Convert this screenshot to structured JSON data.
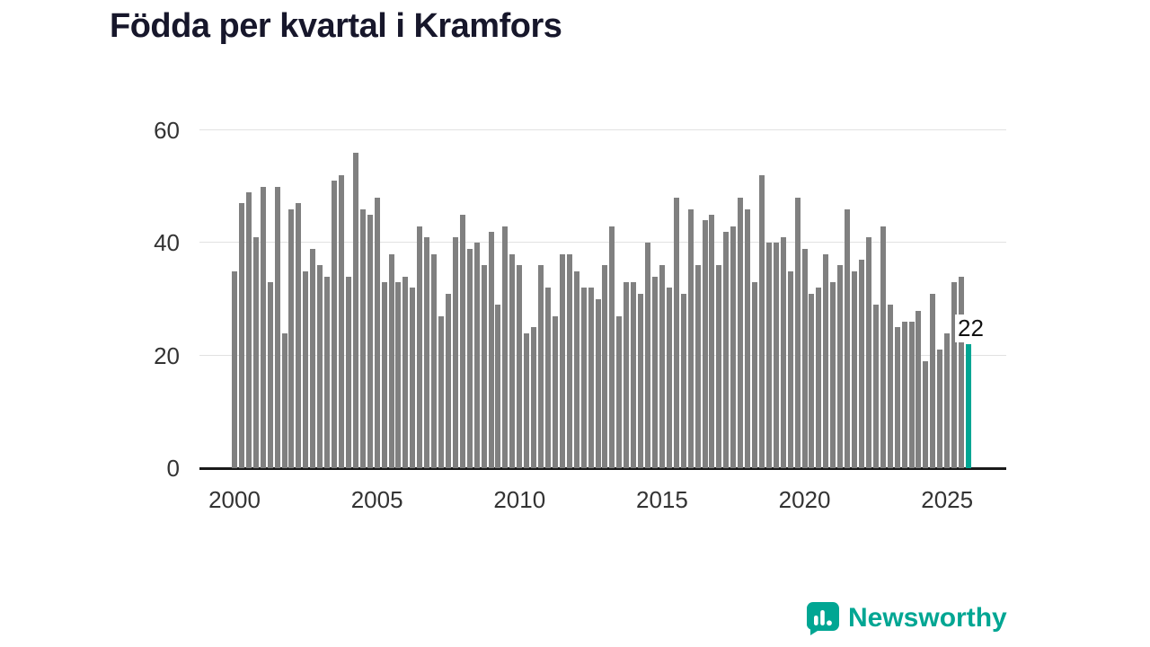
{
  "title": "Födda per kvartal i Kramfors",
  "branding": {
    "logo_text": "Newsworthy"
  },
  "colors": {
    "bar": "#808080",
    "highlight": "#00A693",
    "grid": "#e2e2e2",
    "axis": "#1a1a1a",
    "title": "#17172b",
    "tick": "#333333",
    "brand": "#00A693"
  },
  "chart_data": {
    "type": "bar",
    "title": "Födda per kvartal i Kramfors",
    "x_tick_labels": [
      "2000",
      "2005",
      "2010",
      "2015",
      "2020",
      "2025"
    ],
    "x_tick_indices": [
      0,
      20,
      40,
      60,
      80,
      100
    ],
    "y_ticks": [
      0,
      20,
      40,
      60
    ],
    "ylim": [
      0,
      60
    ],
    "grid": true,
    "legend": false,
    "values": [
      35,
      47,
      49,
      41,
      50,
      33,
      50,
      24,
      46,
      47,
      35,
      39,
      36,
      34,
      51,
      52,
      34,
      56,
      46,
      45,
      48,
      33,
      38,
      33,
      34,
      32,
      43,
      41,
      38,
      27,
      31,
      41,
      45,
      39,
      40,
      36,
      42,
      29,
      43,
      38,
      36,
      24,
      25,
      36,
      32,
      27,
      38,
      38,
      35,
      32,
      32,
      30,
      36,
      43,
      27,
      33,
      33,
      31,
      40,
      34,
      36,
      32,
      48,
      31,
      46,
      36,
      44,
      45,
      36,
      42,
      43,
      48,
      46,
      33,
      52,
      40,
      40,
      41,
      35,
      48,
      39,
      31,
      32,
      38,
      33,
      36,
      46,
      35,
      37,
      41,
      29,
      43,
      29,
      25,
      26,
      26,
      28,
      19,
      31,
      21,
      24,
      33,
      34,
      22
    ],
    "highlight_last_bar": true,
    "highlight_value_label": "22"
  }
}
